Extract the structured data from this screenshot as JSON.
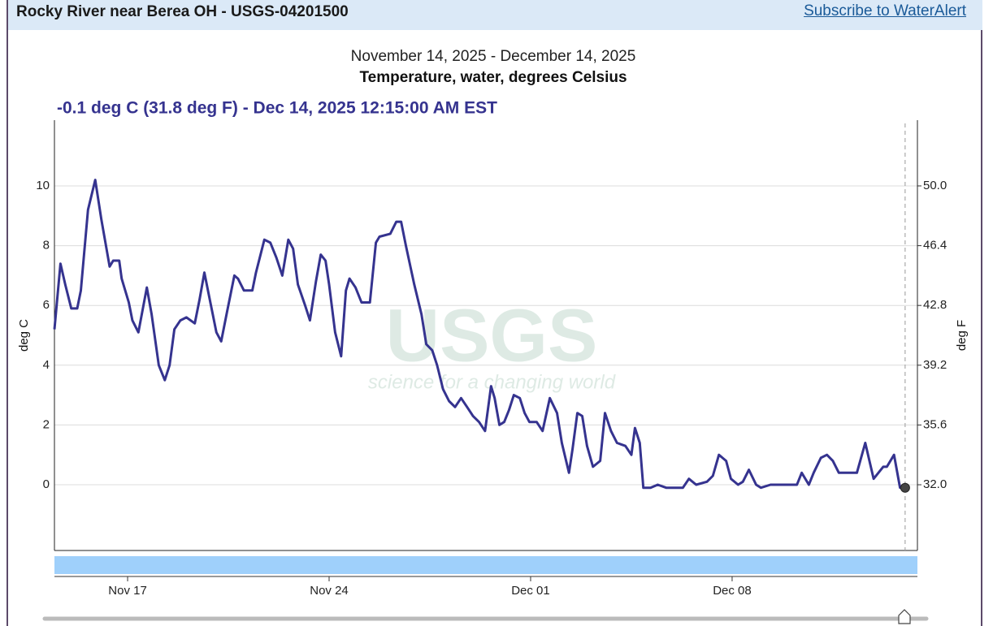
{
  "header": {
    "title": "Rocky River near Berea OH - USGS-04201500",
    "link": "Subscribe to WaterAlert"
  },
  "chart_data": {
    "type": "line",
    "subtitle": "November 14, 2025 - December 14, 2025",
    "title": "Temperature, water, degrees Celsius",
    "tooltip": "-0.1 deg C (31.8 deg F) - Dec 14, 2025 12:15:00 AM EST",
    "cursor": {
      "x": "2025-12-14T00:15",
      "value": -0.1
    },
    "ylabel": "deg C",
    "y2label": "deg F",
    "watermark": {
      "logo": "USGS",
      "tagline": "science for a changing world"
    },
    "color": "#35338f",
    "grid": true,
    "xlim": [
      "2025-11-14T11:00",
      "2025-12-14T10:30"
    ],
    "xticks": [
      {
        "value": "2025-11-17T00:00",
        "label": "Nov 17"
      },
      {
        "value": "2025-11-24T00:00",
        "label": "Nov 24"
      },
      {
        "value": "2025-12-01T00:00",
        "label": "Dec 01"
      },
      {
        "value": "2025-12-08T00:00",
        "label": "Dec 08"
      }
    ],
    "ylim": [
      -2.2,
      12.2
    ],
    "yticks": [
      0,
      2,
      4,
      6,
      8,
      10
    ],
    "y2lim": [
      28.04,
      53.96
    ],
    "y2ticks": [
      {
        "value": 32,
        "label": "32.0"
      },
      35.6,
      39.2,
      42.8,
      46.4,
      {
        "value": 50,
        "label": "50.0"
      }
    ],
    "x": [
      "2025-11-14T11:00",
      "2025-11-14T16:00",
      "2025-11-14T20:00",
      "2025-11-15T01:00",
      "2025-11-15T06:00",
      "2025-11-15T09:00",
      "2025-11-15T15:00",
      "2025-11-15T21:00",
      "2025-11-16T02:00",
      "2025-11-16T09:00",
      "2025-11-16T12:00",
      "2025-11-16T17:00",
      "2025-11-16T19:00",
      "2025-11-17T01:00",
      "2025-11-17T04:00",
      "2025-11-17T09:00",
      "2025-11-17T16:00",
      "2025-11-17T20:00",
      "2025-11-18T02:00",
      "2025-11-18T07:00",
      "2025-11-18T11:00",
      "2025-11-18T15:00",
      "2025-11-18T20:00",
      "2025-11-19T01:00",
      "2025-11-19T08:00",
      "2025-11-19T12:00",
      "2025-11-19T16:00",
      "2025-11-19T20:00",
      "2025-11-20T02:00",
      "2025-11-20T06:00",
      "2025-11-20T11:00",
      "2025-11-20T17:00",
      "2025-11-20T20:00",
      "2025-11-21T01:00",
      "2025-11-21T08:00",
      "2025-11-21T11:00",
      "2025-11-21T18:00",
      "2025-11-21T23:00",
      "2025-11-22T04:00",
      "2025-11-22T09:00",
      "2025-11-22T14:00",
      "2025-11-22T18:00",
      "2025-11-22T22:00",
      "2025-11-23T04:00",
      "2025-11-23T08:00",
      "2025-11-23T13:00",
      "2025-11-23T17:00",
      "2025-11-23T21:00",
      "2025-11-24T00:00",
      "2025-11-24T05:00",
      "2025-11-24T10:00",
      "2025-11-24T14:00",
      "2025-11-24T17:00",
      "2025-11-24T22:00",
      "2025-11-25T03:00",
      "2025-11-25T10:00",
      "2025-11-25T15:00",
      "2025-11-25T18:00",
      "2025-11-26T03:00",
      "2025-11-26T08:00",
      "2025-11-26T12:00",
      "2025-11-26T16:00",
      "2025-11-26T23:00",
      "2025-11-27T05:00",
      "2025-11-27T09:00",
      "2025-11-27T14:00",
      "2025-11-27T18:00",
      "2025-11-27T23:00",
      "2025-11-28T04:00",
      "2025-11-28T09:00",
      "2025-11-28T14:00",
      "2025-11-28T19:00",
      "2025-11-29T00:00",
      "2025-11-29T05:00",
      "2025-11-29T10:00",
      "2025-11-29T15:00",
      "2025-11-29T18:00",
      "2025-11-29T22:00",
      "2025-11-30T02:00",
      "2025-11-30T06:00",
      "2025-11-30T10:00",
      "2025-11-30T15:00",
      "2025-11-30T19:00",
      "2025-11-30T23:00",
      "2025-12-01T05:00",
      "2025-12-01T10:00",
      "2025-12-01T16:00",
      "2025-12-01T22:00",
      "2025-12-02T02:00",
      "2025-12-02T08:00",
      "2025-12-02T11:00",
      "2025-12-02T15:00",
      "2025-12-02T19:00",
      "2025-12-02T23:00",
      "2025-12-03T04:00",
      "2025-12-03T10:00",
      "2025-12-03T14:00",
      "2025-12-03T19:00",
      "2025-12-04T00:00",
      "2025-12-04T07:00",
      "2025-12-04T12:00",
      "2025-12-04T15:00",
      "2025-12-04T19:00",
      "2025-12-04T22:00",
      "2025-12-05T04:00",
      "2025-12-05T10:00",
      "2025-12-05T17:00",
      "2025-12-06T07:00",
      "2025-12-06T12:00",
      "2025-12-06T18:00",
      "2025-12-07T03:00",
      "2025-12-07T08:00",
      "2025-12-07T13:00",
      "2025-12-07T19:00",
      "2025-12-07T23:00",
      "2025-12-08T05:00",
      "2025-12-08T09:00",
      "2025-12-08T14:00",
      "2025-12-08T20:00",
      "2025-12-09T00:00",
      "2025-12-09T08:00",
      "2025-12-10T06:00",
      "2025-12-10T10:00",
      "2025-12-10T16:00",
      "2025-12-10T20:00",
      "2025-12-11T02:00",
      "2025-12-11T07:00",
      "2025-12-11T12:00",
      "2025-12-11T17:00",
      "2025-12-12T08:00",
      "2025-12-12T15:00",
      "2025-12-12T22:00",
      "2025-12-13T06:00",
      "2025-12-13T09:00",
      "2025-12-13T15:00",
      "2025-12-13T20:00",
      "2025-12-14T00:15"
    ],
    "values": [
      5.2,
      7.4,
      6.7,
      5.9,
      5.9,
      6.5,
      9.2,
      10.2,
      8.9,
      7.3,
      7.5,
      7.5,
      6.9,
      6.1,
      5.5,
      5.1,
      6.6,
      5.7,
      4.0,
      3.5,
      4.0,
      5.2,
      5.5,
      5.6,
      5.4,
      6.2,
      7.1,
      6.3,
      5.1,
      4.8,
      5.8,
      7.0,
      6.9,
      6.5,
      6.5,
      7.1,
      8.2,
      8.1,
      7.6,
      7.0,
      8.2,
      7.9,
      6.7,
      6.0,
      5.5,
      6.8,
      7.7,
      7.5,
      6.7,
      5.1,
      4.3,
      6.5,
      6.9,
      6.6,
      6.1,
      6.1,
      8.1,
      8.3,
      8.4,
      8.8,
      8.8,
      8.0,
      6.7,
      5.7,
      4.7,
      4.5,
      4.0,
      3.2,
      2.8,
      2.6,
      2.9,
      2.6,
      2.3,
      2.1,
      1.8,
      3.3,
      2.9,
      2.0,
      2.1,
      2.5,
      3.0,
      2.9,
      2.4,
      2.1,
      2.1,
      1.8,
      2.9,
      2.4,
      1.4,
      0.4,
      1.2,
      2.4,
      2.3,
      1.3,
      0.6,
      0.8,
      2.4,
      1.8,
      1.4,
      1.3,
      1.0,
      1.9,
      1.4,
      -0.1,
      -0.1,
      0,
      -0.1,
      -0.1,
      0.2,
      0,
      0.1,
      0.3,
      1.0,
      0.8,
      0.2,
      0,
      0.1,
      0.5,
      0,
      -0.1,
      0,
      0,
      0.4,
      0,
      0.4,
      0.9,
      1.0,
      0.8,
      0.4,
      0.4,
      1.4,
      0.2,
      0.6,
      0.6,
      1.0,
      -0.1,
      -0.1
    ]
  }
}
